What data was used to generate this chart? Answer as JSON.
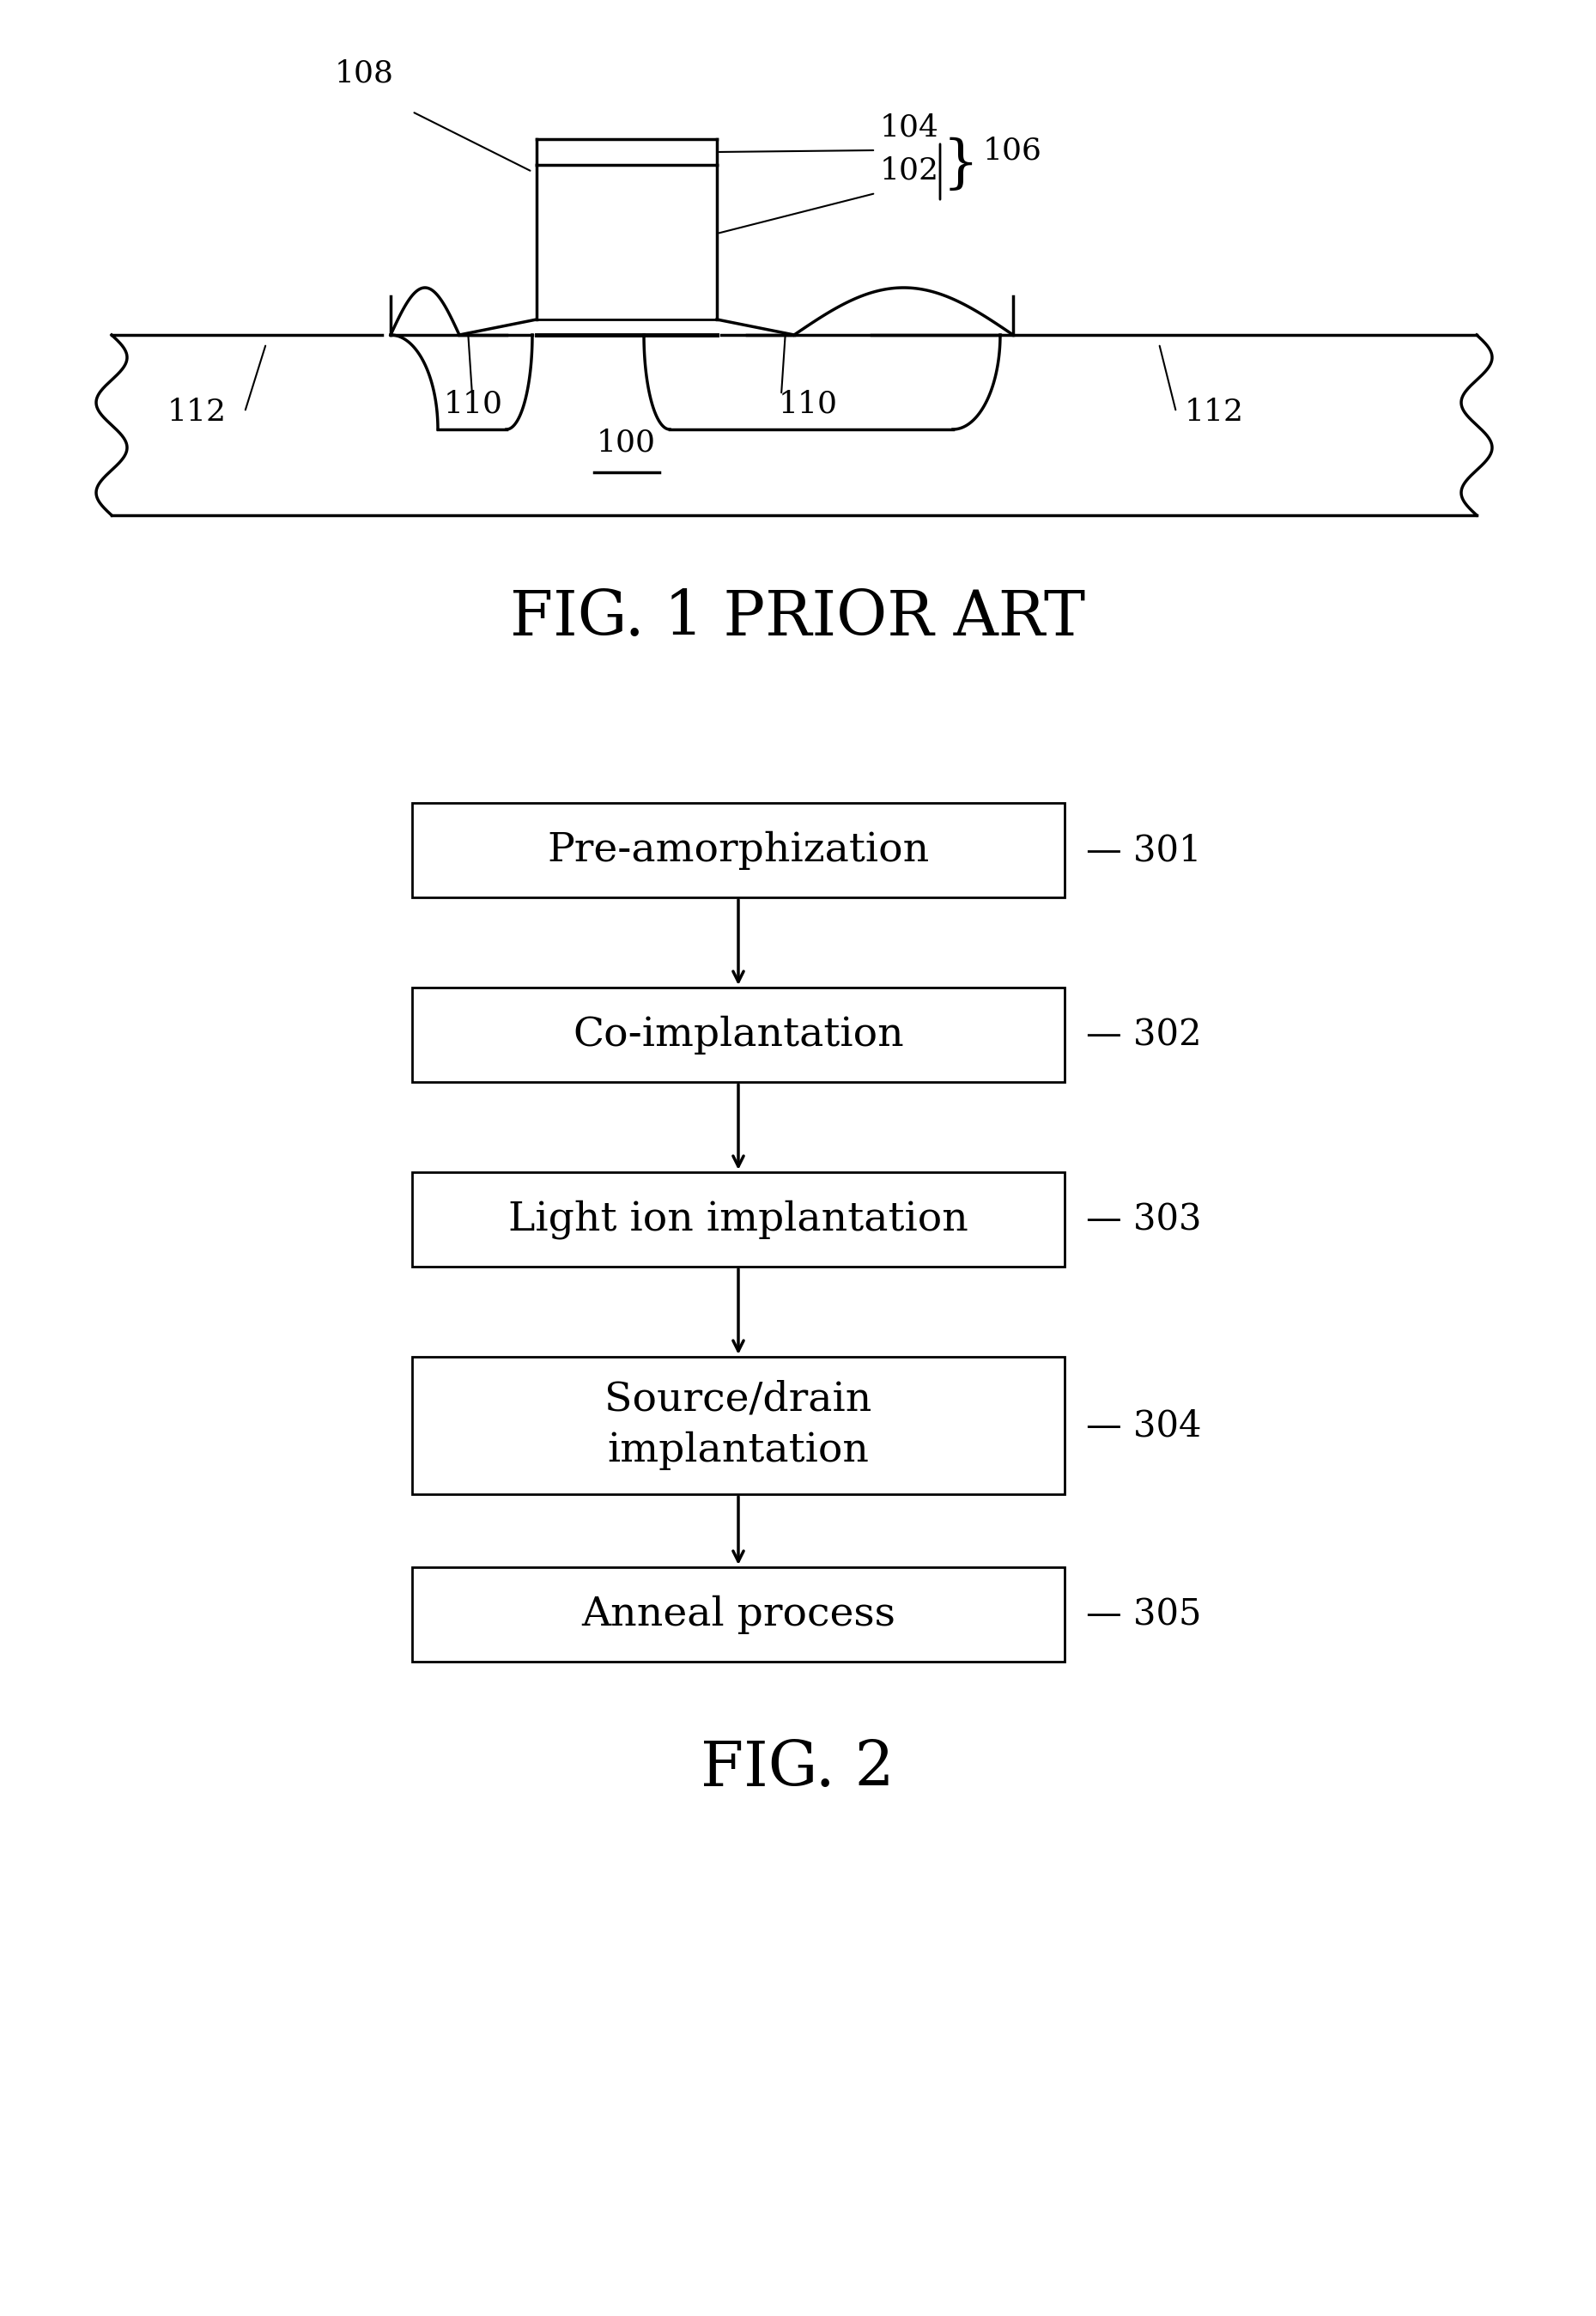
{
  "fig_title_1": "FIG. 1 PRIOR ART",
  "fig_title_2": "FIG. 2",
  "bg_color": "#ffffff",
  "line_color": "#000000",
  "flow_boxes": [
    {
      "label": "Pre-amorphization",
      "num": "301"
    },
    {
      "label": "Co-implantation",
      "num": "302"
    },
    {
      "label": "Light ion implantation",
      "num": "303"
    },
    {
      "label": "Source/drain\nimplantation",
      "num": "304"
    },
    {
      "label": "Anneal process",
      "num": "305"
    }
  ]
}
